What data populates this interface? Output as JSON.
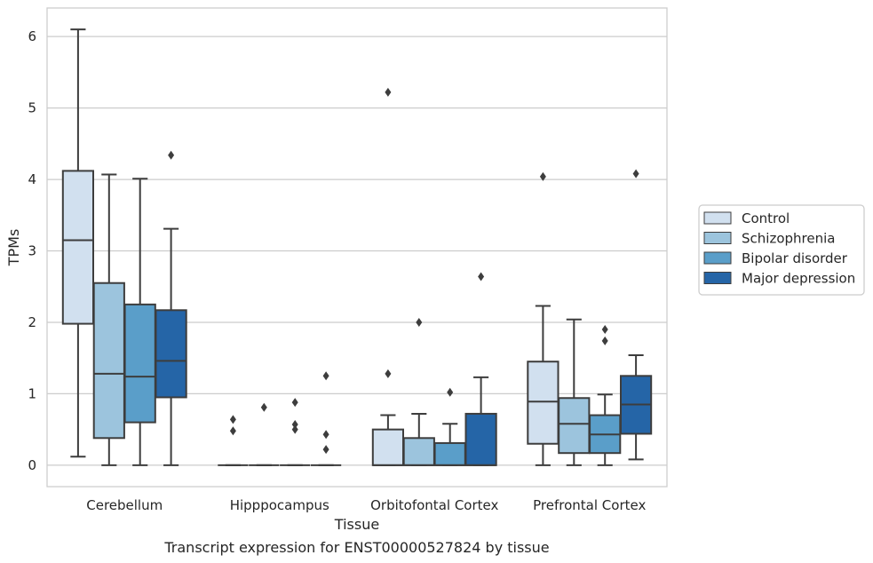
{
  "chart_data": {
    "type": "box",
    "title": "",
    "caption": "Transcript expression for ENST00000527824 by tissue",
    "xlabel": "Tissue",
    "ylabel": "TPMs",
    "ylim": [
      -0.3,
      6.4
    ],
    "yticks": [
      0,
      1,
      2,
      3,
      4,
      5,
      6
    ],
    "grid": "horizontal",
    "legend_position": "right",
    "categories": [
      "Cerebellum",
      "Hipppocampus",
      "Orbitofontal Cortex",
      "Prefrontal Cortex"
    ],
    "series": [
      {
        "name": "Control",
        "color": "#d1e0ef",
        "boxes": [
          {
            "whislo": 0.12,
            "q1": 1.98,
            "med": 3.15,
            "q3": 4.12,
            "whishi": 6.1,
            "fliers": []
          },
          {
            "whislo": 0,
            "q1": 0,
            "med": 0,
            "q3": 0,
            "whishi": 0,
            "fliers": [
              0.48,
              0.64
            ]
          },
          {
            "whislo": 0,
            "q1": 0,
            "med": 0,
            "q3": 0.5,
            "whishi": 0.7,
            "fliers": [
              1.28,
              5.22
            ]
          },
          {
            "whislo": 0,
            "q1": 0.3,
            "med": 0.89,
            "q3": 1.45,
            "whishi": 2.23,
            "fliers": [
              4.04
            ]
          }
        ]
      },
      {
        "name": "Schizophrenia",
        "color": "#9cc4dd",
        "boxes": [
          {
            "whislo": 0,
            "q1": 0.38,
            "med": 1.28,
            "q3": 2.55,
            "whishi": 4.07,
            "fliers": []
          },
          {
            "whislo": 0,
            "q1": 0,
            "med": 0,
            "q3": 0,
            "whishi": 0,
            "fliers": [
              0.81
            ]
          },
          {
            "whislo": 0,
            "q1": 0,
            "med": 0,
            "q3": 0.38,
            "whishi": 0.72,
            "fliers": [
              2.0
            ]
          },
          {
            "whislo": 0,
            "q1": 0.17,
            "med": 0.58,
            "q3": 0.94,
            "whishi": 2.04,
            "fliers": []
          }
        ]
      },
      {
        "name": "Bipolar disorder",
        "color": "#5a9ec9",
        "boxes": [
          {
            "whislo": 0,
            "q1": 0.6,
            "med": 1.24,
            "q3": 2.25,
            "whishi": 4.01,
            "fliers": []
          },
          {
            "whislo": 0,
            "q1": 0,
            "med": 0,
            "q3": 0,
            "whishi": 0,
            "fliers": [
              0.5,
              0.57,
              0.88
            ]
          },
          {
            "whislo": 0,
            "q1": 0,
            "med": 0,
            "q3": 0.31,
            "whishi": 0.58,
            "fliers": [
              1.02
            ]
          },
          {
            "whislo": 0,
            "q1": 0.17,
            "med": 0.43,
            "q3": 0.7,
            "whishi": 0.99,
            "fliers": [
              1.74,
              1.9
            ]
          }
        ]
      },
      {
        "name": "Major depression",
        "color": "#2565a7",
        "boxes": [
          {
            "whislo": 0,
            "q1": 0.95,
            "med": 1.46,
            "q3": 2.17,
            "whishi": 3.31,
            "fliers": [
              4.34
            ]
          },
          {
            "whislo": 0,
            "q1": 0,
            "med": 0,
            "q3": 0,
            "whishi": 0,
            "fliers": [
              0.22,
              0.43,
              1.25
            ]
          },
          {
            "whislo": 0,
            "q1": 0,
            "med": 0,
            "q3": 0.72,
            "whishi": 1.23,
            "fliers": [
              2.64
            ]
          },
          {
            "whislo": 0.08,
            "q1": 0.44,
            "med": 0.85,
            "q3": 1.25,
            "whishi": 1.54,
            "fliers": [
              4.08
            ]
          }
        ]
      }
    ]
  }
}
